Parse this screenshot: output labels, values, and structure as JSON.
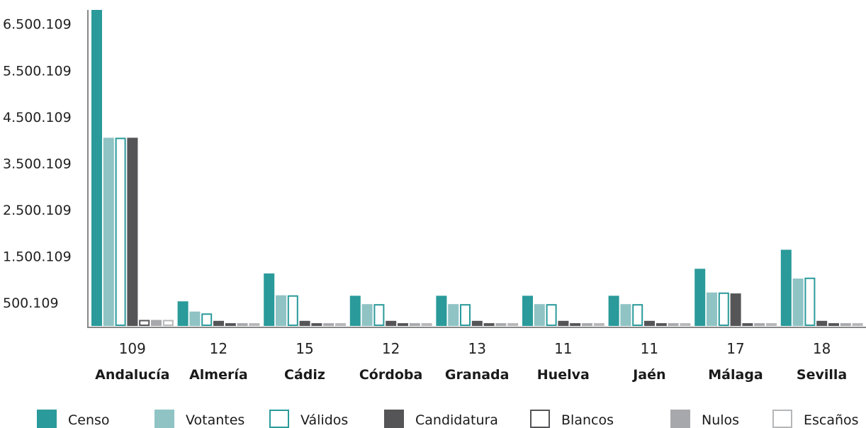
{
  "chart_data": {
    "type": "bar",
    "title": "",
    "xlabel": "",
    "ylabel": "",
    "ylim": [
      0,
      6800000
    ],
    "y_ticks": [
      500109,
      1500109,
      2500109,
      3500109,
      4500109,
      5500109,
      6500109
    ],
    "y_tick_labels": [
      "500.109",
      "1.500.109",
      "2.500.109",
      "3.500.109",
      "4.500.109",
      "5.500.109",
      "6.500.109"
    ],
    "categories": [
      "Andalucía",
      "Almería",
      "Cádiz",
      "Córdoba",
      "Granada",
      "Huelva",
      "Jaén",
      "Málaga",
      "Sevilla"
    ],
    "category_counts": [
      "109",
      "12",
      "15",
      "12",
      "13",
      "11",
      "11",
      "17",
      "18"
    ],
    "grid": false,
    "legend_position": "bottom",
    "series": [
      {
        "name": "Censo",
        "style": "filled",
        "color": "#2a9a9a",
        "values": [
          6800000,
          530000,
          1130000,
          650000,
          650000,
          650000,
          650000,
          1230000,
          1640000
        ]
      },
      {
        "name": "Votantes",
        "style": "filled",
        "color": "#8fc3c4",
        "values": [
          4050000,
          310000,
          660000,
          470000,
          470000,
          470000,
          470000,
          720000,
          1020000
        ]
      },
      {
        "name": "Válidos",
        "style": "outline",
        "color": "#2a9a9a",
        "values": [
          4050000,
          270000,
          660000,
          470000,
          470000,
          470000,
          470000,
          720000,
          1040000
        ]
      },
      {
        "name": "Candidatura",
        "style": "filled",
        "color": "#555558",
        "values": [
          4050000,
          110000,
          110000,
          110000,
          110000,
          110000,
          110000,
          700000,
          110000
        ]
      },
      {
        "name": "Blancos",
        "style": "outline",
        "color": "#555558",
        "values": [
          130000,
          60000,
          60000,
          60000,
          60000,
          60000,
          60000,
          60000,
          60000
        ]
      },
      {
        "name": "Nulos",
        "style": "filled",
        "color": "#a7a8ab",
        "values": [
          130000,
          60000,
          60000,
          60000,
          60000,
          60000,
          60000,
          60000,
          60000
        ]
      },
      {
        "name": "Escaños",
        "style": "outline",
        "color": "#b5b6b8",
        "values": [
          130000,
          60000,
          60000,
          60000,
          60000,
          60000,
          60000,
          60000,
          60000
        ]
      }
    ]
  }
}
